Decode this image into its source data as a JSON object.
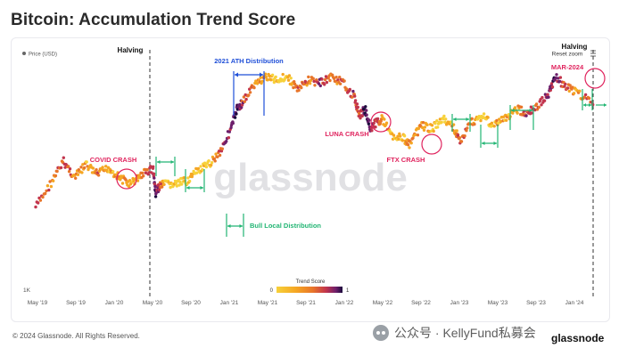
{
  "page": {
    "title": "Bitcoin: Accumulation Trend Score",
    "copyright": "© 2024 Glassnode. All Rights Reserved.",
    "watermark": "glassnode",
    "wechat_text": "公众号 · KellyFund私募会",
    "logo_text": "glassnode",
    "reset_zoom": "Reset zoom"
  },
  "chart_data": {
    "type": "scatter",
    "legend": {
      "price": "Price (USD)",
      "score_title": "Trend Score",
      "score_min": "0",
      "score_max": "1",
      "colors": [
        "#f7d13a",
        "#f5a623",
        "#e8752a",
        "#c2354d",
        "#6d1f6b",
        "#1b0a3c"
      ]
    },
    "y_axis": {
      "scale": "log",
      "tick_label": "1K"
    },
    "x_axis": {
      "tick_labels": [
        "May '19",
        "Sep '19",
        "Jan '20",
        "May '20",
        "Sep '20",
        "Jan '21",
        "May '21",
        "Sep '21",
        "Jan '22",
        "May '22",
        "Sep '22",
        "Jan '23",
        "May '23",
        "Sep '23",
        "Jan '24"
      ]
    },
    "series_points": [
      [
        0.0,
        0.5,
        0.6
      ],
      [
        0.03,
        0.42,
        0.3
      ],
      [
        0.05,
        0.36,
        0.6
      ],
      [
        0.07,
        0.41,
        0.3
      ],
      [
        0.09,
        0.37,
        0.2
      ],
      [
        0.11,
        0.4,
        0.4
      ],
      [
        0.13,
        0.38,
        0.1
      ],
      [
        0.15,
        0.41,
        0.3
      ],
      [
        0.17,
        0.43,
        0.2
      ],
      [
        0.19,
        0.4,
        0.3
      ],
      [
        0.21,
        0.38,
        0.6
      ],
      [
        0.215,
        0.46,
        0.9
      ],
      [
        0.22,
        0.44,
        0.7
      ],
      [
        0.23,
        0.43,
        0.1
      ],
      [
        0.25,
        0.43,
        0.0
      ],
      [
        0.27,
        0.42,
        0.1
      ],
      [
        0.29,
        0.39,
        0.05
      ],
      [
        0.31,
        0.37,
        0.05
      ],
      [
        0.33,
        0.33,
        0.5
      ],
      [
        0.35,
        0.26,
        0.8
      ],
      [
        0.36,
        0.2,
        0.9
      ],
      [
        0.37,
        0.18,
        0.6
      ],
      [
        0.39,
        0.13,
        0.4
      ],
      [
        0.41,
        0.1,
        0.25
      ],
      [
        0.43,
        0.11,
        0.05
      ],
      [
        0.45,
        0.1,
        0.1
      ],
      [
        0.47,
        0.14,
        0.5
      ],
      [
        0.49,
        0.11,
        0.3
      ],
      [
        0.51,
        0.12,
        0.7
      ],
      [
        0.53,
        0.1,
        0.3
      ],
      [
        0.55,
        0.12,
        0.5
      ],
      [
        0.57,
        0.16,
        0.6
      ],
      [
        0.58,
        0.22,
        0.5
      ],
      [
        0.59,
        0.2,
        0.95
      ],
      [
        0.6,
        0.26,
        0.8
      ],
      [
        0.61,
        0.24,
        0.6
      ],
      [
        0.62,
        0.23,
        0.3
      ],
      [
        0.64,
        0.28,
        0.1
      ],
      [
        0.66,
        0.29,
        0.1
      ],
      [
        0.67,
        0.31,
        0.3
      ],
      [
        0.69,
        0.25,
        0.3
      ],
      [
        0.71,
        0.26,
        0.1
      ],
      [
        0.73,
        0.23,
        0.0
      ],
      [
        0.75,
        0.26,
        0.3
      ],
      [
        0.76,
        0.3,
        0.5
      ],
      [
        0.78,
        0.24,
        0.4
      ],
      [
        0.8,
        0.22,
        0.0
      ],
      [
        0.82,
        0.25,
        0.2
      ],
      [
        0.84,
        0.23,
        0.2
      ],
      [
        0.86,
        0.2,
        0.3
      ],
      [
        0.88,
        0.21,
        0.6
      ],
      [
        0.9,
        0.19,
        0.5
      ],
      [
        0.92,
        0.15,
        0.7
      ],
      [
        0.93,
        0.1,
        0.9
      ],
      [
        0.95,
        0.13,
        0.4
      ],
      [
        0.97,
        0.15,
        0.2
      ],
      [
        1.0,
        0.18,
        0.6
      ]
    ],
    "markers": [
      {
        "label": "Halving",
        "x": "May '20"
      },
      {
        "label": "Halving",
        "x": "Apr '24"
      }
    ],
    "annotations": [
      {
        "label": "COVID CRASH",
        "color": "#e0245e"
      },
      {
        "label": "2021 ATH Distribution",
        "color": "#1f4fd8"
      },
      {
        "label": "LUNA CRASH",
        "color": "#e0245e"
      },
      {
        "label": "FTX CRASH",
        "color": "#e0245e"
      },
      {
        "label": "MAR-2024",
        "color": "#e0245e"
      },
      {
        "label": "Bull Local Distribution",
        "color": "#22b573"
      }
    ]
  }
}
